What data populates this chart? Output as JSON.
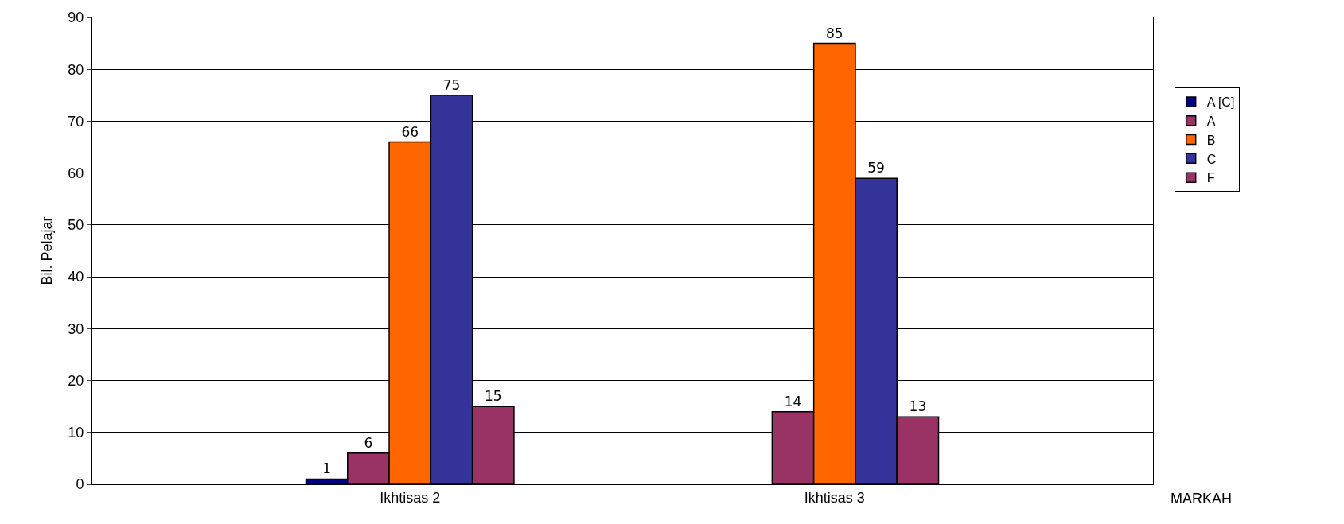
{
  "chart_data": {
    "type": "bar",
    "xlabel": "MARKAH",
    "ylabel": "Bil. Pelajar",
    "categories": [
      null,
      "Ikhtisas 2",
      null,
      "Ikhtisas 3",
      null
    ],
    "series": [
      {
        "name": "A [C]",
        "color": "#000080",
        "values": [
          null,
          1,
          null,
          null,
          null
        ]
      },
      {
        "name": "A",
        "color": "#993366",
        "values": [
          null,
          6,
          null,
          14,
          null
        ]
      },
      {
        "name": "B",
        "color": "#ff6600",
        "values": [
          null,
          66,
          null,
          85,
          null
        ]
      },
      {
        "name": "C",
        "color": "#333399",
        "values": [
          null,
          75,
          null,
          59,
          null
        ]
      },
      {
        "name": "F",
        "color": "#993366",
        "values": [
          null,
          15,
          null,
          13,
          null
        ]
      }
    ],
    "ylim": [
      0,
      90
    ],
    "yticks": [
      0,
      10,
      20,
      30,
      40,
      50,
      60,
      70,
      80,
      90
    ],
    "grid": "y",
    "legend": "right",
    "data_labels": true
  }
}
